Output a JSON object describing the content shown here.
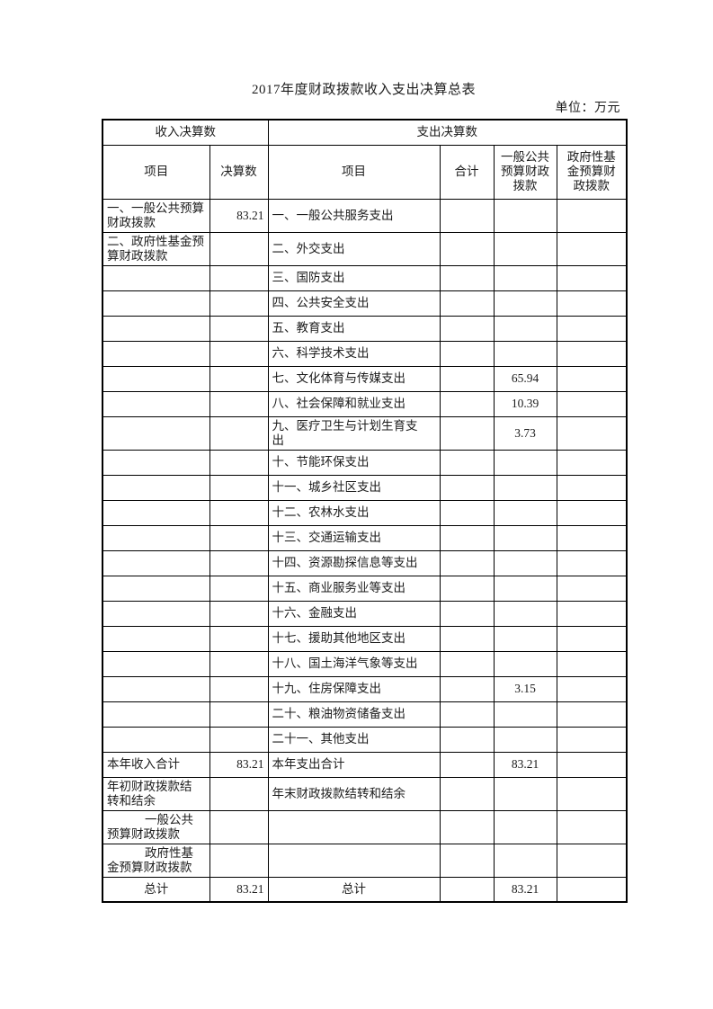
{
  "page": {
    "title": "2017年度财政拨款收入支出决算总表",
    "unit_label": "单位：万元"
  },
  "table": {
    "header": {
      "income_group": "收入决算数",
      "expense_group": "支出决算数",
      "income_item": "项目",
      "income_amount": "决算数",
      "expense_item": "项目",
      "expense_total": "合计",
      "expense_general": "一般公共\n预算财政\n拨款",
      "expense_govfund": "政府性基\n金预算财\n政拨款"
    },
    "rows": [
      {
        "c": [
          "一、一般公共预算\n财政拨款",
          "83.21",
          "一、一般公共服务支出",
          "",
          "",
          ""
        ]
      },
      {
        "c": [
          "二、政府性基金预\n算财政拨款",
          "",
          "二、外交支出",
          "",
          "",
          ""
        ]
      },
      {
        "c": [
          "",
          "",
          "三、国防支出",
          "",
          "",
          ""
        ]
      },
      {
        "c": [
          "",
          "",
          "四、公共安全支出",
          "",
          "",
          ""
        ]
      },
      {
        "c": [
          "",
          "",
          "五、教育支出",
          "",
          "",
          ""
        ]
      },
      {
        "c": [
          "",
          "",
          "六、科学技术支出",
          "",
          "",
          ""
        ]
      },
      {
        "c": [
          "",
          "",
          "七、文化体育与传媒支出",
          "",
          "65.94",
          ""
        ]
      },
      {
        "c": [
          "",
          "",
          "八、社会保障和就业支出",
          "",
          "10.39",
          ""
        ]
      },
      {
        "c": [
          "",
          "",
          "九、医疗卫生与计划生育支\n出",
          "",
          "3.73",
          ""
        ]
      },
      {
        "c": [
          "",
          "",
          "十、节能环保支出",
          "",
          "",
          ""
        ]
      },
      {
        "c": [
          "",
          "",
          "十一、城乡社区支出",
          "",
          "",
          ""
        ]
      },
      {
        "c": [
          "",
          "",
          "十二、农林水支出",
          "",
          "",
          ""
        ]
      },
      {
        "c": [
          "",
          "",
          "十三、交通运输支出",
          "",
          "",
          ""
        ]
      },
      {
        "c": [
          "",
          "",
          "十四、资源勘探信息等支出",
          "",
          "",
          ""
        ]
      },
      {
        "c": [
          "",
          "",
          "十五、商业服务业等支出",
          "",
          "",
          ""
        ]
      },
      {
        "c": [
          "",
          "",
          "十六、金融支出",
          "",
          "",
          ""
        ]
      },
      {
        "c": [
          "",
          "",
          "十七、援助其他地区支出",
          "",
          "",
          ""
        ]
      },
      {
        "c": [
          "",
          "",
          "十八、国土海洋气象等支出",
          "",
          "",
          ""
        ]
      },
      {
        "c": [
          "",
          "",
          "十九、住房保障支出",
          "",
          "3.15",
          ""
        ]
      },
      {
        "c": [
          "",
          "",
          "二十、粮油物资储备支出",
          "",
          "",
          ""
        ]
      },
      {
        "c": [
          "",
          "",
          "二十一、其他支出",
          "",
          "",
          ""
        ]
      },
      {
        "c": [
          "本年收入合计",
          "83.21",
          "本年支出合计",
          "",
          "83.21",
          ""
        ]
      },
      {
        "c": [
          "年初财政拨款结\n转和结余",
          "",
          "年末财政拨款结转和结余",
          "",
          "",
          ""
        ]
      },
      {
        "c": [
          "一般公共\n预算财政拨款",
          "",
          "",
          "",
          "",
          ""
        ],
        "indent0": true
      },
      {
        "c": [
          "政府性基\n金预算财政拨款",
          "",
          "",
          "",
          "",
          ""
        ],
        "indent0": true
      },
      {
        "c": [
          "总计",
          "83.21",
          "总计",
          "",
          "83.21",
          ""
        ],
        "center": true
      }
    ]
  }
}
